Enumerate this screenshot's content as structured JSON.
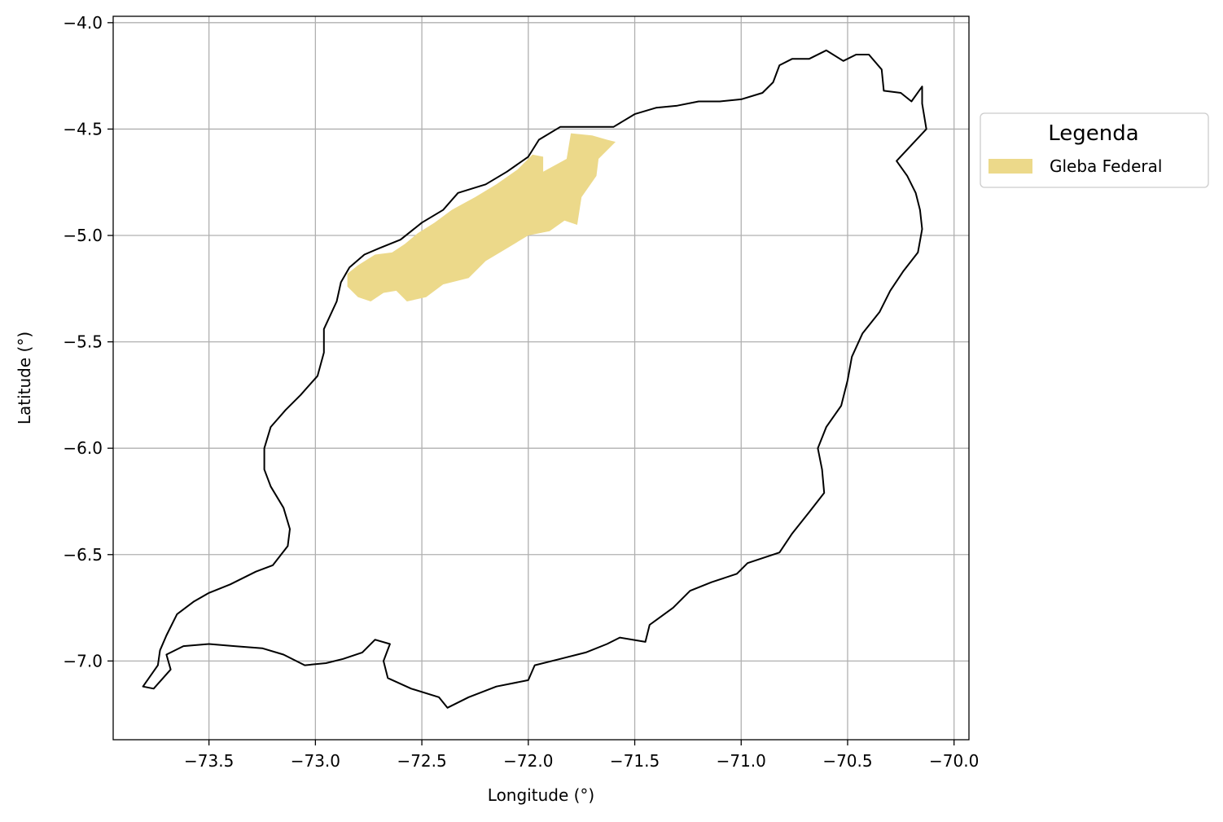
{
  "chart_data": {
    "type": "map",
    "xlabel": "Longitude (°)",
    "ylabel": "Latitude (°)",
    "xlim": [
      -73.95,
      -69.93
    ],
    "ylim": [
      -7.37,
      -3.97
    ],
    "xticks": [
      -73.5,
      -73.0,
      -72.5,
      -72.0,
      -71.5,
      -71.0,
      -70.5,
      -70.0
    ],
    "xtick_labels": [
      "−73.5",
      "−73.0",
      "−72.5",
      "−72.0",
      "−71.5",
      "−71.0",
      "−70.5",
      "−70.0"
    ],
    "yticks": [
      -4.0,
      -4.5,
      -5.0,
      -5.5,
      -6.0,
      -6.5,
      -7.0
    ],
    "ytick_labels": [
      "−4.0",
      "−4.5",
      "−5.0",
      "−5.5",
      "−6.0",
      "−6.5",
      "−7.0"
    ],
    "grid": true,
    "legend": {
      "title": "Legenda",
      "placement": "outside-upper-right",
      "entries": [
        {
          "label": "Gleba Federal",
          "color": "#ecd98a"
        }
      ]
    },
    "layers": [
      {
        "name": "boundary",
        "kind": "outline",
        "color": "#000000",
        "coordinates": [
          [
            -73.81,
            -7.12
          ],
          [
            -73.74,
            -7.02
          ],
          [
            -73.73,
            -6.95
          ],
          [
            -73.7,
            -6.88
          ],
          [
            -73.65,
            -6.78
          ],
          [
            -73.57,
            -6.72
          ],
          [
            -73.5,
            -6.68
          ],
          [
            -73.4,
            -6.64
          ],
          [
            -73.28,
            -6.58
          ],
          [
            -73.2,
            -6.55
          ],
          [
            -73.13,
            -6.46
          ],
          [
            -73.12,
            -6.38
          ],
          [
            -73.15,
            -6.28
          ],
          [
            -73.21,
            -6.18
          ],
          [
            -73.24,
            -6.1
          ],
          [
            -73.24,
            -6.0
          ],
          [
            -73.21,
            -5.9
          ],
          [
            -73.14,
            -5.82
          ],
          [
            -73.07,
            -5.75
          ],
          [
            -72.99,
            -5.66
          ],
          [
            -72.96,
            -5.55
          ],
          [
            -72.96,
            -5.44
          ],
          [
            -72.9,
            -5.31
          ],
          [
            -72.88,
            -5.22
          ],
          [
            -72.84,
            -5.15
          ],
          [
            -72.77,
            -5.09
          ],
          [
            -72.7,
            -5.06
          ],
          [
            -72.6,
            -5.02
          ],
          [
            -72.5,
            -4.94
          ],
          [
            -72.4,
            -4.88
          ],
          [
            -72.33,
            -4.8
          ],
          [
            -72.2,
            -4.76
          ],
          [
            -72.1,
            -4.7
          ],
          [
            -72.0,
            -4.63
          ],
          [
            -71.95,
            -4.55
          ],
          [
            -71.85,
            -4.49
          ],
          [
            -71.75,
            -4.49
          ],
          [
            -71.6,
            -4.49
          ],
          [
            -71.5,
            -4.43
          ],
          [
            -71.4,
            -4.4
          ],
          [
            -71.3,
            -4.39
          ],
          [
            -71.2,
            -4.37
          ],
          [
            -71.1,
            -4.37
          ],
          [
            -71.0,
            -4.36
          ],
          [
            -70.9,
            -4.33
          ],
          [
            -70.85,
            -4.28
          ],
          [
            -70.82,
            -4.2
          ],
          [
            -70.76,
            -4.17
          ],
          [
            -70.68,
            -4.17
          ],
          [
            -70.6,
            -4.13
          ],
          [
            -70.52,
            -4.18
          ],
          [
            -70.46,
            -4.15
          ],
          [
            -70.4,
            -4.15
          ],
          [
            -70.34,
            -4.22
          ],
          [
            -70.33,
            -4.32
          ],
          [
            -70.25,
            -4.33
          ],
          [
            -70.2,
            -4.37
          ],
          [
            -70.15,
            -4.3
          ],
          [
            -70.15,
            -4.38
          ],
          [
            -70.13,
            -4.5
          ],
          [
            -70.27,
            -4.65
          ],
          [
            -70.22,
            -4.72
          ],
          [
            -70.18,
            -4.8
          ],
          [
            -70.16,
            -4.88
          ],
          [
            -70.15,
            -4.97
          ],
          [
            -70.17,
            -5.08
          ],
          [
            -70.24,
            -5.17
          ],
          [
            -70.3,
            -5.26
          ],
          [
            -70.35,
            -5.36
          ],
          [
            -70.43,
            -5.46
          ],
          [
            -70.48,
            -5.57
          ],
          [
            -70.5,
            -5.68
          ],
          [
            -70.53,
            -5.8
          ],
          [
            -70.6,
            -5.9
          ],
          [
            -70.64,
            -6.0
          ],
          [
            -70.62,
            -6.1
          ],
          [
            -70.61,
            -6.21
          ],
          [
            -70.68,
            -6.3
          ],
          [
            -70.76,
            -6.4
          ],
          [
            -70.82,
            -6.49
          ],
          [
            -70.97,
            -6.54
          ],
          [
            -71.02,
            -6.59
          ],
          [
            -71.14,
            -6.63
          ],
          [
            -71.24,
            -6.67
          ],
          [
            -71.32,
            -6.75
          ],
          [
            -71.43,
            -6.83
          ],
          [
            -71.45,
            -6.91
          ],
          [
            -71.57,
            -6.89
          ],
          [
            -71.63,
            -6.92
          ],
          [
            -71.73,
            -6.96
          ],
          [
            -71.85,
            -6.99
          ],
          [
            -71.97,
            -7.02
          ],
          [
            -72.0,
            -7.09
          ],
          [
            -72.15,
            -7.12
          ],
          [
            -72.28,
            -7.17
          ],
          [
            -72.38,
            -7.22
          ],
          [
            -72.42,
            -7.17
          ],
          [
            -72.55,
            -7.13
          ],
          [
            -72.66,
            -7.08
          ],
          [
            -72.68,
            -7.0
          ],
          [
            -72.65,
            -6.92
          ],
          [
            -72.72,
            -6.9
          ],
          [
            -72.78,
            -6.96
          ],
          [
            -72.87,
            -6.99
          ],
          [
            -72.95,
            -7.01
          ],
          [
            -73.05,
            -7.02
          ],
          [
            -73.15,
            -6.97
          ],
          [
            -73.25,
            -6.94
          ],
          [
            -73.38,
            -6.93
          ],
          [
            -73.5,
            -6.92
          ],
          [
            -73.62,
            -6.93
          ],
          [
            -73.7,
            -6.97
          ],
          [
            -73.68,
            -7.04
          ],
          [
            -73.76,
            -7.13
          ],
          [
            -73.81,
            -7.12
          ]
        ]
      },
      {
        "name": "Gleba Federal",
        "kind": "fill",
        "color": "#ecd98a",
        "coordinates": [
          [
            -72.85,
            -5.18
          ],
          [
            -72.8,
            -5.14
          ],
          [
            -72.72,
            -5.09
          ],
          [
            -72.64,
            -5.08
          ],
          [
            -72.58,
            -5.04
          ],
          [
            -72.52,
            -4.99
          ],
          [
            -72.44,
            -4.94
          ],
          [
            -72.36,
            -4.88
          ],
          [
            -72.25,
            -4.82
          ],
          [
            -72.15,
            -4.76
          ],
          [
            -72.05,
            -4.69
          ],
          [
            -71.98,
            -4.62
          ],
          [
            -71.93,
            -4.63
          ],
          [
            -71.93,
            -4.7
          ],
          [
            -71.82,
            -4.64
          ],
          [
            -71.8,
            -4.52
          ],
          [
            -71.7,
            -4.53
          ],
          [
            -71.63,
            -4.55
          ],
          [
            -71.59,
            -4.56
          ],
          [
            -71.67,
            -4.64
          ],
          [
            -71.68,
            -4.72
          ],
          [
            -71.75,
            -4.82
          ],
          [
            -71.77,
            -4.95
          ],
          [
            -71.83,
            -4.93
          ],
          [
            -71.9,
            -4.98
          ],
          [
            -72.0,
            -5.0
          ],
          [
            -72.1,
            -5.06
          ],
          [
            -72.2,
            -5.12
          ],
          [
            -72.28,
            -5.2
          ],
          [
            -72.4,
            -5.23
          ],
          [
            -72.48,
            -5.29
          ],
          [
            -72.57,
            -5.31
          ],
          [
            -72.62,
            -5.26
          ],
          [
            -72.68,
            -5.27
          ],
          [
            -72.74,
            -5.31
          ],
          [
            -72.8,
            -5.29
          ],
          [
            -72.85,
            -5.24
          ],
          [
            -72.85,
            -5.18
          ]
        ]
      }
    ]
  }
}
